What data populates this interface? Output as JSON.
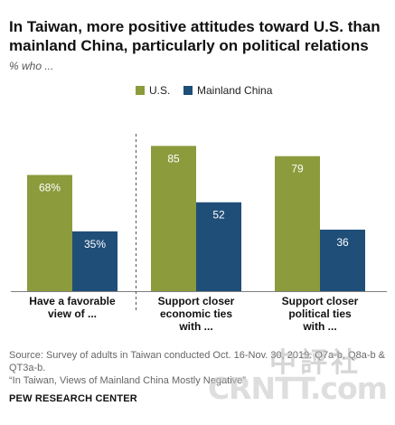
{
  "title": "In Taiwan, more positive attitudes toward U.S. than mainland China, particularly on political relations",
  "subtitle": "% who ...",
  "colors": {
    "us": "#8c9b3c",
    "china": "#1f4e79",
    "label_on_bar": "#ffffff",
    "axis": "#7f7f7f",
    "divider": "#555555"
  },
  "chart_data": {
    "type": "bar",
    "categories": [
      [
        "Have a favorable",
        "view of ..."
      ],
      [
        "Support closer",
        "economic ties",
        "with ..."
      ],
      [
        "Support closer",
        "political ties",
        "with ..."
      ]
    ],
    "series": [
      {
        "name": "U.S.",
        "values": [
          68,
          85,
          79
        ],
        "labels": [
          "68%",
          "85",
          "79"
        ]
      },
      {
        "name": "Mainland China",
        "values": [
          35,
          52,
          36
        ],
        "labels": [
          "35%",
          "52",
          "36"
        ]
      }
    ],
    "ylim": [
      0,
      100
    ],
    "grid": false,
    "legend": "top-center",
    "divider_after_category": 0
  },
  "source": {
    "line1": "Source: Survey of adults in Taiwan conducted Oct. 16-Nov. 30, 2019. Q7a-b, Q8a-b &",
    "line2": "QT3a-b.",
    "line3": "“In Taiwan, Views of Mainland China Mostly Negative”"
  },
  "brand": "PEW RESEARCH CENTER",
  "watermark": {
    "top": "中評社",
    "bottom": "CRNTT.com"
  }
}
